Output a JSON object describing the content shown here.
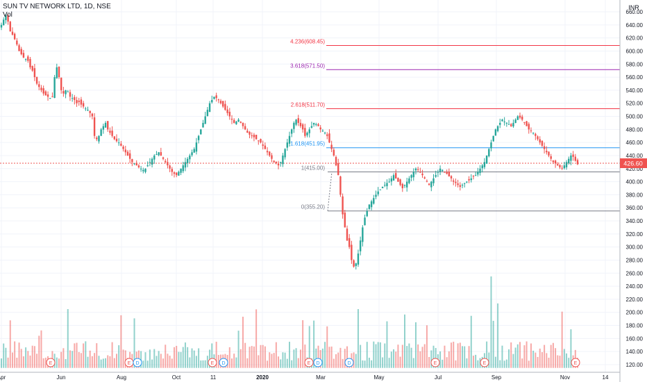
{
  "header": {
    "title": "SUN TV NETWORK LTD, 1D, NSE",
    "volume_label": "Vol",
    "currency": "INR"
  },
  "price_axis": {
    "ticks": [
      "660.00",
      "640.00",
      "620.00",
      "600.00",
      "580.00",
      "560.00",
      "540.00",
      "520.00",
      "500.00",
      "480.00",
      "460.00",
      "440.00",
      "420.00",
      "400.00",
      "380.00",
      "360.00",
      "340.00",
      "320.00",
      "300.00",
      "280.00",
      "260.00",
      "240.00",
      "220.00",
      "200.00",
      "180.00",
      "160.00",
      "140.00",
      "120.00"
    ],
    "last_price": "426.60",
    "last_price_color": "#ef5350"
  },
  "time_axis": {
    "labels": [
      "Apr",
      "Jun",
      "Aug",
      "Oct",
      "11",
      "2020",
      "Mar",
      "May",
      "Jul",
      "Sep",
      "Nov",
      "14"
    ]
  },
  "fib_levels": [
    {
      "label": "4.236(608.45)",
      "value": 608.45,
      "color": "#f23645"
    },
    {
      "label": "3.618(571.50)",
      "value": 571.5,
      "color": "#9c27b0"
    },
    {
      "label": "2.618(511.70)",
      "value": 511.7,
      "color": "#f23645"
    },
    {
      "label": "1.618(451.95)",
      "value": 451.95,
      "color": "#2196f3"
    },
    {
      "label": "1(415.00)",
      "value": 415.0,
      "color": "#787b86"
    },
    {
      "label": "0(355.20)",
      "value": 355.2,
      "color": "#787b86"
    }
  ],
  "event_markers": [
    {
      "type": "E"
    },
    {
      "type": "E"
    },
    {
      "type": "D"
    },
    {
      "type": "E"
    },
    {
      "type": "D"
    },
    {
      "type": "E"
    },
    {
      "type": "D"
    },
    {
      "type": "E"
    },
    {
      "type": "D"
    },
    {
      "type": "E"
    },
    {
      "type": "E"
    },
    {
      "type": "E"
    },
    {
      "type": "E"
    }
  ],
  "colors": {
    "up": "#26a69a",
    "down": "#ef5350",
    "grid": "#f0f3fa",
    "axis_text": "#131722"
  },
  "chart_data": {
    "type": "candlestick",
    "title": "SUN TV NETWORK LTD, 1D, NSE",
    "y_unit": "INR",
    "ylim": [
      120,
      660
    ],
    "x_period": "Apr 2019 - Nov 2020",
    "last": 426.6,
    "close_series": [
      640,
      648,
      655,
      645,
      630,
      625,
      618,
      610,
      600,
      595,
      590,
      588,
      585,
      575,
      570,
      560,
      550,
      545,
      540,
      535,
      532,
      530,
      528,
      530,
      560,
      575,
      560,
      540,
      535,
      540,
      538,
      530,
      528,
      525,
      520,
      522,
      518,
      515,
      512,
      510,
      505,
      500,
      470,
      465,
      470,
      480,
      485,
      490,
      480,
      475,
      470,
      465,
      462,
      460,
      455,
      450,
      445,
      440,
      435,
      430,
      428,
      425,
      422,
      420,
      418,
      420,
      425,
      430,
      435,
      440,
      442,
      445,
      440,
      435,
      430,
      425,
      420,
      415,
      412,
      410,
      415,
      420,
      425,
      430,
      435,
      440,
      445,
      450,
      460,
      470,
      480,
      490,
      500,
      510,
      520,
      525,
      530,
      528,
      525,
      520,
      515,
      510,
      505,
      500,
      495,
      490,
      492,
      495,
      490,
      485,
      480,
      475,
      472,
      470,
      468,
      465,
      462,
      460,
      455,
      450,
      445,
      440,
      435,
      430,
      428,
      425,
      430,
      440,
      450,
      460,
      470,
      480,
      490,
      495,
      490,
      485,
      480,
      470,
      475,
      480,
      485,
      490,
      488,
      485,
      480,
      478,
      475,
      470,
      460,
      450,
      440,
      425,
      410,
      380,
      350,
      330,
      310,
      300,
      280,
      270,
      275,
      290,
      310,
      330,
      345,
      355,
      365,
      370,
      375,
      380,
      385,
      388,
      392,
      395,
      398,
      400,
      405,
      410,
      405,
      400,
      395,
      390,
      395,
      400,
      405,
      410,
      415,
      420,
      418,
      415,
      410,
      405,
      400,
      395,
      400,
      405,
      410,
      415,
      420,
      418,
      415,
      412,
      408,
      405,
      400,
      398,
      395,
      392,
      395,
      398,
      400,
      402,
      405,
      408,
      410,
      415,
      420,
      425,
      430,
      440,
      450,
      460,
      470,
      480,
      485,
      490,
      495,
      492,
      490,
      488,
      485,
      490,
      495,
      500,
      498,
      495,
      490,
      485,
      480,
      478,
      475,
      470,
      465,
      460,
      455,
      450,
      445,
      440,
      435,
      430,
      428,
      425,
      422,
      420,
      425,
      430,
      435,
      440,
      438,
      432,
      426.6
    ],
    "volume_range": [
      120,
      255
    ]
  }
}
